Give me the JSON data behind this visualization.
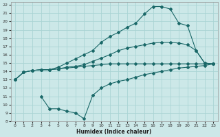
{
  "xlabel": "Humidex (Indice chaleur)",
  "bg_color": "#cce8e8",
  "grid_color": "#aad4d4",
  "line_color": "#1a6868",
  "xlim": [
    -0.5,
    23.5
  ],
  "ylim": [
    8,
    22.3
  ],
  "xticks": [
    0,
    1,
    2,
    3,
    4,
    5,
    6,
    7,
    8,
    9,
    10,
    11,
    12,
    13,
    14,
    15,
    16,
    17,
    18,
    19,
    20,
    21,
    22,
    23
  ],
  "yticks": [
    8,
    9,
    10,
    11,
    12,
    13,
    14,
    15,
    16,
    17,
    18,
    19,
    20,
    21,
    22
  ],
  "line1_x": [
    0,
    1,
    2,
    3,
    4,
    5,
    6,
    7,
    8,
    9,
    10,
    11,
    12,
    13,
    14,
    15,
    16,
    17,
    18,
    19,
    20,
    21,
    22,
    23
  ],
  "line1_y": [
    13,
    13.9,
    14.1,
    14.2,
    14.2,
    14.3,
    14.4,
    14.5,
    14.6,
    14.7,
    14.8,
    14.9,
    14.9,
    14.9,
    14.9,
    14.9,
    14.9,
    14.9,
    14.9,
    14.9,
    14.9,
    14.9,
    14.9,
    14.9
  ],
  "line2_x": [
    0,
    1,
    2,
    3,
    4,
    5,
    6,
    7,
    8,
    9,
    10,
    11,
    12,
    13,
    14,
    15,
    16,
    17,
    18,
    19,
    20,
    21,
    22,
    23
  ],
  "line2_y": [
    13,
    13.9,
    14.1,
    14.2,
    14.2,
    14.3,
    14.5,
    14.6,
    14.8,
    15.2,
    15.6,
    16.0,
    16.5,
    16.8,
    17.0,
    17.2,
    17.4,
    17.5,
    17.5,
    17.4,
    17.2,
    16.5,
    15.0,
    14.9
  ],
  "line3_x": [
    0,
    1,
    2,
    3,
    4,
    5,
    6,
    7,
    8,
    9,
    10,
    11,
    12,
    13,
    14,
    15,
    16,
    17,
    18,
    19,
    20,
    21,
    22,
    23
  ],
  "line3_y": [
    13,
    13.9,
    14.1,
    14.2,
    14.2,
    14.5,
    15.0,
    15.5,
    16.0,
    16.5,
    17.5,
    18.2,
    18.7,
    19.3,
    19.8,
    20.9,
    21.8,
    21.8,
    21.5,
    19.8,
    19.5,
    16.5,
    15.0,
    14.9
  ],
  "line4_x": [
    3,
    4,
    5,
    6,
    7,
    8,
    9,
    10,
    11,
    12,
    13,
    14,
    15,
    16,
    17,
    18,
    19,
    20,
    21,
    22,
    23
  ],
  "line4_y": [
    11.0,
    9.5,
    9.5,
    9.2,
    9.0,
    8.3,
    11.1,
    12.0,
    12.5,
    12.8,
    13.0,
    13.3,
    13.6,
    13.8,
    14.0,
    14.2,
    14.4,
    14.5,
    14.6,
    14.7,
    14.9
  ]
}
